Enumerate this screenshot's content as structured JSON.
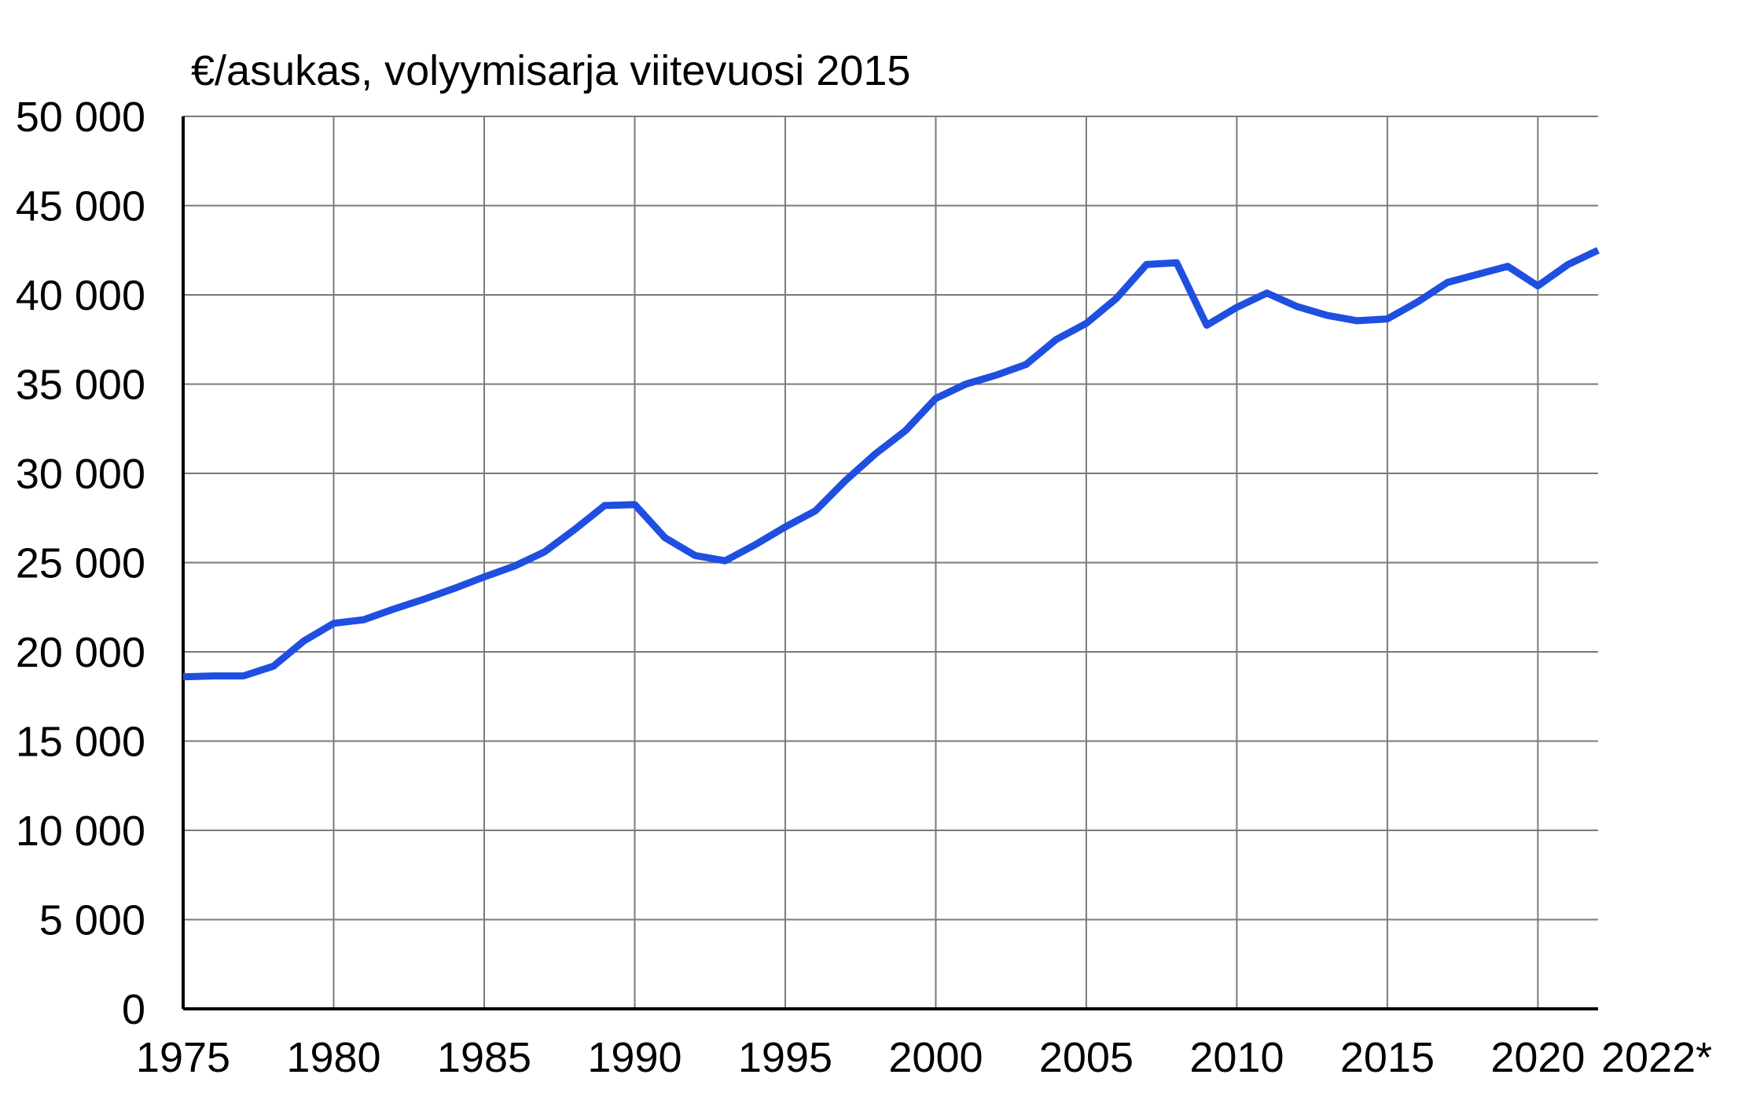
{
  "chart_data": {
    "type": "line",
    "unit_label": "€/asukas, volyymisarja viitevuosi 2015",
    "xlim": [
      1975,
      2022
    ],
    "ylim": [
      0,
      50000
    ],
    "grid": true,
    "x_ticks": [
      1975,
      1980,
      1985,
      1990,
      1995,
      2000,
      2005,
      2010,
      2015,
      2020,
      2022
    ],
    "x_tick_labels": [
      "1975",
      "1980",
      "1985",
      "1990",
      "1995",
      "2000",
      "2005",
      "2010",
      "2015",
      "2020",
      "2022*"
    ],
    "y_ticks": [
      0,
      5000,
      10000,
      15000,
      20000,
      25000,
      30000,
      35000,
      40000,
      45000,
      50000
    ],
    "y_tick_labels": [
      "0",
      "5 000",
      "10 000",
      "15 000",
      "20 000",
      "25 000",
      "30 000",
      "35 000",
      "40 000",
      "45 000",
      "50 000"
    ],
    "series": [
      {
        "color": "#1f4fe0",
        "x": [
          1975,
          1976,
          1977,
          1978,
          1979,
          1980,
          1981,
          1982,
          1983,
          1984,
          1985,
          1986,
          1987,
          1988,
          1989,
          1990,
          1991,
          1992,
          1993,
          1994,
          1995,
          1996,
          1997,
          1998,
          1999,
          2000,
          2001,
          2002,
          2003,
          2004,
          2005,
          2006,
          2007,
          2008,
          2009,
          2010,
          2011,
          2012,
          2013,
          2014,
          2015,
          2016,
          2017,
          2018,
          2019,
          2020,
          2021,
          2022
        ],
        "y": [
          18600,
          18650,
          18650,
          19200,
          20600,
          21600,
          21800,
          22400,
          22950,
          23550,
          24200,
          24800,
          25600,
          26850,
          28200,
          28250,
          26400,
          25400,
          25100,
          26000,
          27000,
          27900,
          29600,
          31100,
          32400,
          34200,
          35000,
          35500,
          36100,
          37500,
          38400,
          39800,
          41700,
          41800,
          38300,
          39300,
          40100,
          39350,
          38850,
          38550,
          38650,
          39600,
          40700,
          41150,
          41600,
          40500,
          41700,
          42500
        ]
      }
    ]
  }
}
